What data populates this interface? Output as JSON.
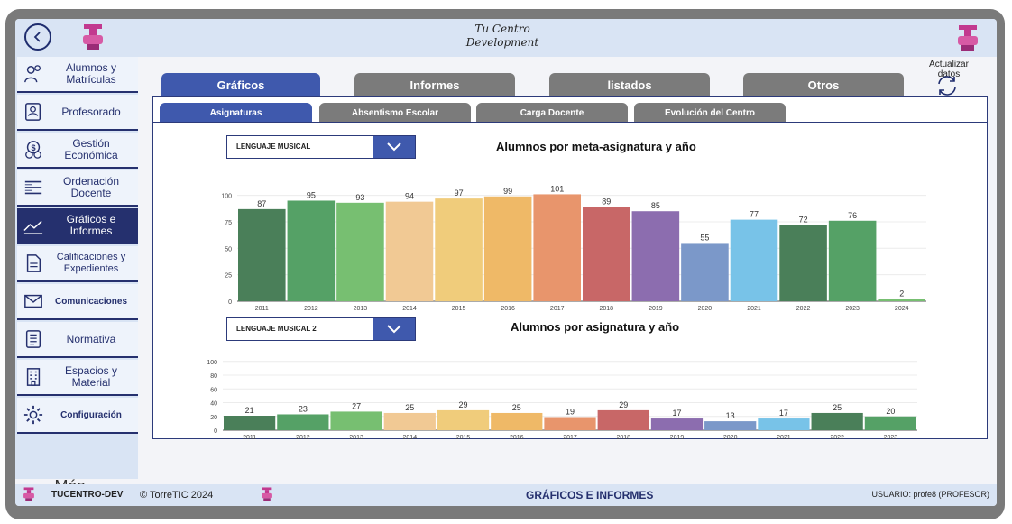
{
  "header": {
    "title_line1": "Tu Centro",
    "title_line2": "Development"
  },
  "sidebar": {
    "items": [
      {
        "label": "Alumnos y Matrículas",
        "icon": "people-icon"
      },
      {
        "label": "Profesorado",
        "icon": "teacher-icon"
      },
      {
        "label": "Gestión Económica",
        "icon": "money-icon"
      },
      {
        "label": "Ordenación Docente",
        "icon": "list-icon"
      },
      {
        "label": "Gráficos e Informes",
        "icon": "chart-line-icon"
      },
      {
        "label": "Calificaciones y Expedientes",
        "icon": "document-icon"
      },
      {
        "label": "Comunicaciones",
        "icon": "mail-icon"
      },
      {
        "label": "Normativa",
        "icon": "rules-icon"
      },
      {
        "label": "Espacios y Material",
        "icon": "building-icon"
      },
      {
        "label": "Configuración",
        "icon": "gear-icon"
      }
    ],
    "more_label": "Más..."
  },
  "tabs": {
    "main": [
      "Gráficos",
      "Informes",
      "listados",
      "Otros"
    ],
    "sub": [
      "Asignaturas",
      "Absentismo Escolar",
      "Carga Docente",
      "Evolución del Centro"
    ]
  },
  "refresh": {
    "label": "Actualizar datos"
  },
  "selects": {
    "meta_value": "LENGUAJE MUSICAL",
    "subject_value": "LENGUAJE MUSICAL 2"
  },
  "footer": {
    "app_name": "TUCENTRO-DEV",
    "copyright": "© TorreTIC  2024",
    "section": "GRÁFICOS E INFORMES",
    "user": "USUARIO: profe8 (PROFESOR)"
  },
  "colors": {
    "accent": "#3f59ad",
    "dark_navy": "#25306e",
    "bars": [
      "#4a7f59",
      "#55a166",
      "#77bf71",
      "#f1c994",
      "#f0cc7b",
      "#efb967",
      "#e8956c",
      "#c86767",
      "#8c6daf",
      "#7b98c9",
      "#78c3e8",
      "#4a7f59",
      "#55a166",
      "#77bf71"
    ]
  },
  "chart_data": [
    {
      "type": "bar",
      "title": "Alumnos por meta-asignatura y año",
      "categories": [
        "2011",
        "2012",
        "2013",
        "2014",
        "2015",
        "2016",
        "2017",
        "2018",
        "2019",
        "2020",
        "2021",
        "2022",
        "2023",
        "2024"
      ],
      "values": [
        87,
        95,
        93,
        94,
        97,
        99,
        101,
        89,
        85,
        55,
        77,
        72,
        76,
        2
      ],
      "yticks": [
        "0",
        "25",
        "50",
        "75",
        "100"
      ],
      "ylim": [
        0,
        115
      ],
      "grid": true
    },
    {
      "type": "bar",
      "title": "Alumnos por asignatura y año",
      "categories": [
        "2011",
        "2012",
        "2013",
        "2014",
        "2015",
        "2016",
        "2017",
        "2018",
        "2019",
        "2020",
        "2021",
        "2022",
        "2023"
      ],
      "values": [
        21,
        23,
        27,
        25,
        29,
        25,
        19,
        29,
        17,
        13,
        17,
        25,
        20
      ],
      "yticks": [
        "0",
        "20",
        "40",
        "60",
        "80",
        "100"
      ],
      "ylim": [
        0,
        105
      ],
      "grid": true
    }
  ]
}
